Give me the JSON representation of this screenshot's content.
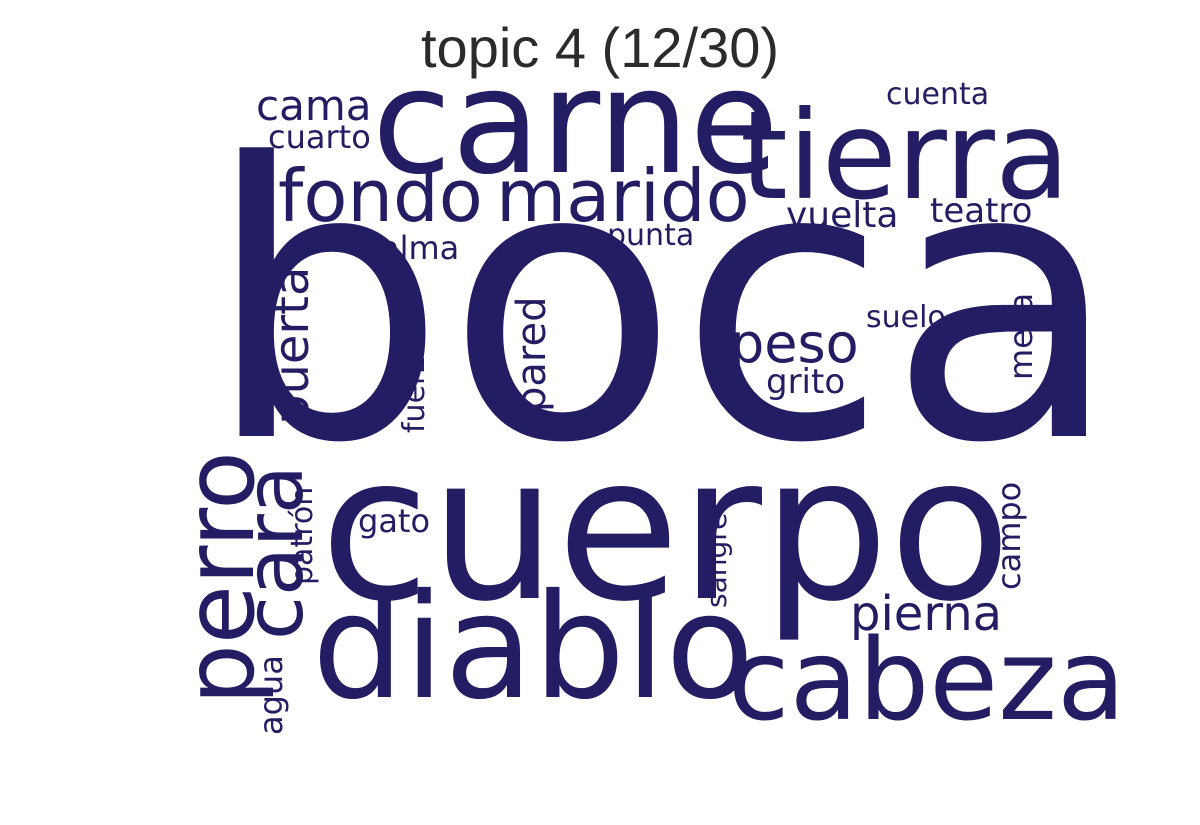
{
  "title": "topic 4 (12/30)",
  "word_color": "#231d63",
  "title_color": "#2b2b2b",
  "words": [
    {
      "text": "boca"
    },
    {
      "text": "cuerpo"
    },
    {
      "text": "carne"
    },
    {
      "text": "tierra"
    },
    {
      "text": "diablo"
    },
    {
      "text": "cabeza"
    },
    {
      "text": "fondo"
    },
    {
      "text": "marido"
    },
    {
      "text": "perro"
    },
    {
      "text": "cara"
    },
    {
      "text": "peso"
    },
    {
      "text": "pierna"
    },
    {
      "text": "puerta"
    },
    {
      "text": "pared"
    },
    {
      "text": "cama"
    },
    {
      "text": "vuelta"
    },
    {
      "text": "teatro"
    },
    {
      "text": "cuarto"
    },
    {
      "text": "cuenta"
    },
    {
      "text": "alma"
    },
    {
      "text": "punta"
    },
    {
      "text": "grito"
    },
    {
      "text": "suelo"
    },
    {
      "text": "mesa"
    },
    {
      "text": "fuerza"
    },
    {
      "text": "gato"
    },
    {
      "text": "patrón"
    },
    {
      "text": "sangre"
    },
    {
      "text": "campo"
    },
    {
      "text": "agua"
    }
  ]
}
